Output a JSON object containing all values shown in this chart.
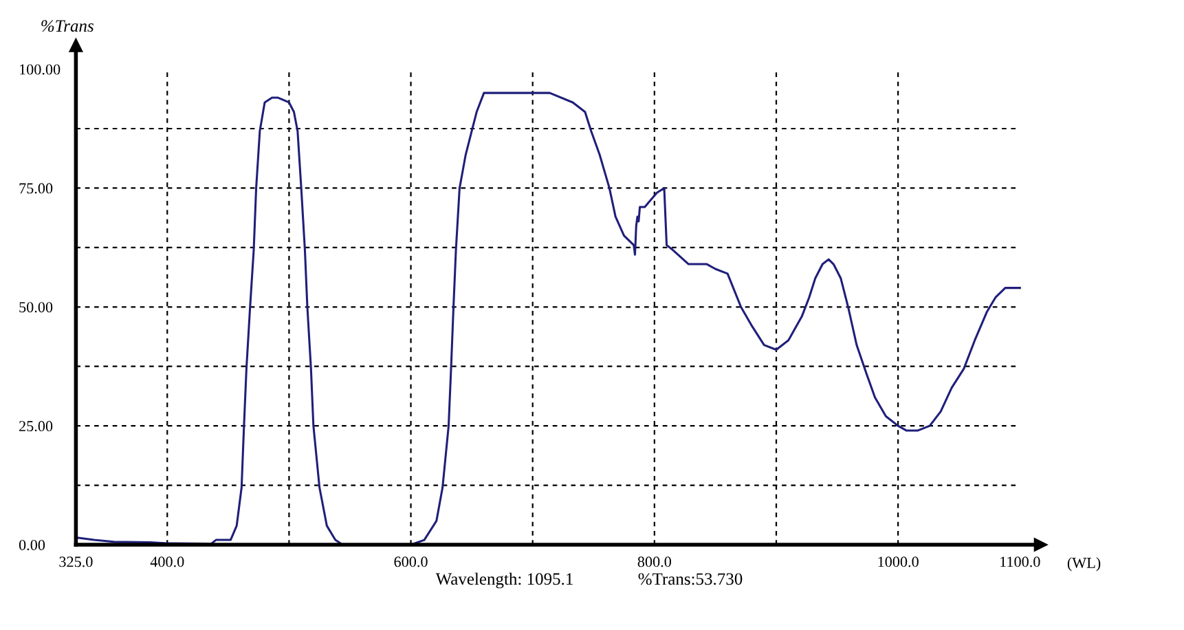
{
  "chart_data": {
    "type": "line",
    "ylabel": "%Trans",
    "xlabel": "(WL)",
    "annotations": [
      "Wavelength: 1095.1",
      "%Trans:53.730"
    ],
    "x": [
      325,
      340,
      356,
      386,
      400,
      436,
      440,
      452,
      457,
      461,
      463,
      465,
      468,
      471,
      473,
      476,
      480,
      486,
      491,
      500,
      504,
      507,
      510,
      513,
      515,
      518,
      520,
      525,
      531,
      538,
      544,
      600,
      611,
      621,
      626,
      631,
      633,
      635,
      637,
      640,
      645,
      650,
      654,
      660,
      664,
      680,
      690,
      703,
      714,
      733,
      743,
      748,
      755,
      763,
      768,
      775,
      783,
      784,
      785,
      786,
      787,
      788,
      792,
      802,
      808,
      810,
      815,
      828,
      843,
      850,
      860,
      871,
      880,
      890,
      900,
      910,
      921,
      927,
      932,
      938,
      943,
      947,
      953,
      959,
      966,
      974,
      981,
      990,
      1000,
      1007,
      1016,
      1026,
      1035,
      1044,
      1054,
      1063,
      1073,
      1080,
      1088,
      1097,
      1100
    ],
    "series": [
      {
        "color": "#1f1f7a",
        "values": [
          1.5,
          1.0,
          0.6,
          0.5,
          0.3,
          0.2,
          1.0,
          1.0,
          4,
          12,
          25,
          37,
          50,
          62,
          75,
          87,
          93,
          94,
          94,
          93,
          91,
          87,
          75,
          62,
          50,
          37,
          25,
          12,
          4,
          1,
          0,
          0,
          1,
          5,
          12,
          25,
          37,
          50,
          62,
          75,
          82,
          87,
          91,
          95,
          95,
          95,
          95,
          95,
          95,
          93,
          91,
          87,
          82,
          75,
          69,
          65,
          63,
          61,
          67,
          69,
          68,
          71,
          71,
          74,
          75,
          63,
          62,
          59,
          59,
          58,
          57,
          50,
          46,
          42,
          41,
          43,
          48,
          52,
          56,
          59,
          60,
          59,
          56,
          50,
          42,
          36,
          31,
          27,
          25,
          24,
          24,
          25,
          28,
          33,
          37,
          43,
          49,
          52,
          54,
          54,
          54
        ]
      }
    ],
    "xlim": [
      325,
      1117
    ],
    "ylim": [
      0,
      105
    ],
    "xticks": [
      {
        "value": 325,
        "label": "325.0"
      },
      {
        "value": 400,
        "label": "400.0"
      },
      {
        "value": 500,
        "label": null
      },
      {
        "value": 600,
        "label": "600.0"
      },
      {
        "value": 700,
        "label": null
      },
      {
        "value": 800,
        "label": "800.0"
      },
      {
        "value": 900,
        "label": null
      },
      {
        "value": 1000,
        "label": "1000.0"
      },
      {
        "value": 1100,
        "label": "1100.0"
      }
    ],
    "yticks": [
      {
        "value": 0,
        "label": "0.00"
      },
      {
        "value": 12.5,
        "label": null
      },
      {
        "value": 25,
        "label": "25.00"
      },
      {
        "value": 37.5,
        "label": null
      },
      {
        "value": 50,
        "label": "50.00"
      },
      {
        "value": 62.5,
        "label": null
      },
      {
        "value": 75,
        "label": "75.00"
      },
      {
        "value": 87.5,
        "label": null
      },
      {
        "value": 100,
        "label": "100.00"
      }
    ],
    "grid": true,
    "line_style": "solid"
  }
}
